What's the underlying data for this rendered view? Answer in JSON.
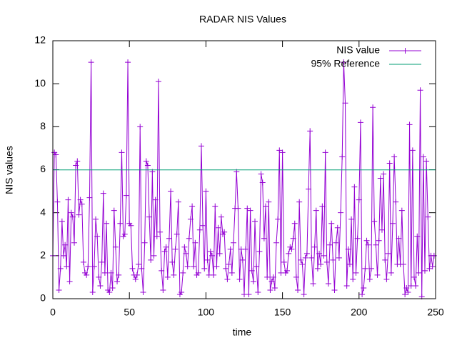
{
  "chart_data": {
    "type": "line",
    "title": "RADAR NIS Values",
    "xlabel": "time",
    "ylabel": "NIS values",
    "xlim": [
      0,
      250
    ],
    "xticks": [
      0,
      50,
      100,
      150,
      200,
      250
    ],
    "ylim": [
      0,
      12
    ],
    "yticks": [
      0,
      2,
      4,
      6,
      8,
      10,
      12
    ],
    "grid": false,
    "legend": "top-right",
    "series": [
      {
        "name": "NIS value",
        "color": "#9400d3",
        "marker": "+",
        "x": [
          0,
          1,
          2,
          3,
          4,
          5,
          6,
          7,
          8,
          9,
          10,
          11,
          12,
          13,
          14,
          15,
          16,
          17,
          18,
          19,
          20,
          21,
          22,
          23,
          24,
          25,
          26,
          27,
          28,
          29,
          30,
          31,
          32,
          33,
          34,
          35,
          36,
          37,
          38,
          39,
          40,
          41,
          42,
          43,
          44,
          45,
          46,
          47,
          48,
          49,
          50,
          51,
          52,
          53,
          54,
          55,
          56,
          57,
          58,
          59,
          60,
          61,
          62,
          63,
          64,
          65,
          66,
          67,
          68,
          69,
          70,
          71,
          72,
          73,
          74,
          75,
          76,
          77,
          78,
          79,
          80,
          81,
          82,
          83,
          84,
          85,
          86,
          87,
          88,
          89,
          90,
          91,
          92,
          93,
          94,
          95,
          96,
          97,
          98,
          99,
          100,
          101,
          102,
          103,
          104,
          105,
          106,
          107,
          108,
          109,
          110,
          111,
          112,
          113,
          114,
          115,
          116,
          117,
          118,
          119,
          120,
          121,
          122,
          123,
          124,
          125,
          126,
          127,
          128,
          129,
          130,
          131,
          132,
          133,
          134,
          135,
          136,
          137,
          138,
          139,
          140,
          141,
          142,
          143,
          144,
          145,
          146,
          147,
          148,
          149,
          150,
          151,
          152,
          153,
          154,
          155,
          156,
          157,
          158,
          159,
          160,
          161,
          162,
          163,
          164,
          165,
          166,
          167,
          168,
          169,
          170,
          171,
          172,
          173,
          174,
          175,
          176,
          177,
          178,
          179,
          180,
          181,
          182,
          183,
          184,
          185,
          186,
          187,
          188,
          189,
          190,
          191,
          192,
          193,
          194,
          195,
          196,
          197,
          198,
          199,
          200,
          201,
          202,
          203,
          204,
          205,
          206,
          207,
          208,
          209,
          210,
          211,
          212,
          213,
          214,
          215,
          216,
          217,
          218,
          219,
          220,
          221,
          222,
          223,
          224,
          225,
          226,
          227,
          228,
          229,
          230,
          231,
          232,
          233,
          234,
          235,
          236,
          237,
          238,
          239,
          240,
          241,
          242,
          243,
          244,
          245,
          246,
          247,
          248,
          249
        ],
        "values": [
          2.0,
          6.8,
          6.7,
          4.5,
          0.4,
          1.4,
          3.6,
          2.0,
          2.5,
          1.5,
          4.6,
          0.8,
          4.0,
          3.8,
          2.6,
          6.2,
          6.4,
          3.9,
          4.6,
          4.4,
          1.7,
          1.2,
          1.1,
          1.5,
          4.7,
          11.0,
          0.3,
          1.5,
          3.7,
          2.9,
          1.0,
          0.6,
          1.7,
          4.9,
          1.2,
          3.5,
          0.4,
          0.3,
          1.2,
          0.5,
          4.1,
          2.4,
          0.8,
          1.1,
          3.5,
          6.8,
          2.9,
          3.0,
          4.8,
          11.0,
          3.5,
          3.4,
          1.4,
          1.1,
          0.9,
          1.1,
          1.6,
          8.0,
          1.4,
          0.3,
          2.6,
          6.4,
          6.2,
          3.8,
          1.8,
          5.9,
          2.0,
          4.6,
          2.9,
          10.1,
          3.1,
          1.3,
          0.4,
          2.2,
          2.4,
          1.0,
          2.8,
          5.0,
          1.7,
          1.1,
          2.3,
          3.0,
          4.5,
          0.2,
          0.3,
          1.2,
          2.4,
          2.1,
          1.5,
          2.8,
          3.7,
          4.3,
          1.5,
          2.6,
          1.1,
          1.2,
          3.2,
          7.1,
          3.4,
          1.4,
          5.0,
          1.8,
          1.1,
          2.2,
          2.0,
          1.1,
          4.3,
          1.5,
          3.3,
          2.1,
          3.8,
          3.0,
          3.1,
          1.4,
          0.9,
          1.6,
          2.3,
          1.2,
          2.6,
          4.2,
          5.9,
          4.2,
          0.9,
          2.3,
          1.8,
          0.2,
          2.3,
          4.2,
          0.2,
          4.1,
          1.3,
          0.8,
          3.6,
          1.5,
          0.3,
          2.2,
          5.8,
          5.4,
          2.8,
          4.3,
          1.0,
          4.5,
          0.4,
          0.8,
          1.0,
          0.5,
          2.6,
          3.7,
          6.9,
          1.2,
          6.8,
          1.7,
          1.2,
          1.3,
          2.1,
          2.4,
          2.3,
          2.8,
          3.5,
          1.0,
          0.4,
          4.5,
          1.8,
          1.6,
          0.2,
          1.9,
          2.1,
          5.1,
          7.8,
          1.9,
          0.7,
          2.4,
          4.1,
          1.4,
          2.1,
          1.6,
          4.3,
          2.0,
          6.8,
          1.7,
          0.7,
          2.5,
          3.5,
          1.8,
          0.4,
          2.6,
          3.3,
          1.9,
          4.0,
          6.6,
          11.0,
          9.1,
          0.6,
          2.3,
          1.6,
          3.7,
          0.9,
          5.2,
          1.2,
          2.8,
          4.6,
          8.2,
          0.2,
          0.5,
          1.4,
          2.7,
          2.5,
          0.9,
          1.4,
          8.9,
          3.6,
          2.5,
          1.1,
          2.7,
          5.6,
          3.2,
          5.8,
          1.8,
          0.9,
          2.1,
          6.3,
          1.2,
          3.5,
          6.6,
          4.5,
          1.6,
          2.8,
          1.6,
          4.1,
          1.6,
          0.2,
          0.5,
          0.3,
          8.1,
          0.6,
          6.9,
          1.0,
          0.6,
          2.9,
          1.2,
          9.7,
          0.1,
          6.6,
          1.3,
          6.4,
          3.8,
          1.4,
          2.0,
          1.5,
          2.0
        ]
      },
      {
        "name": "95% Reference",
        "color": "#009e73",
        "x": [
          0,
          250
        ],
        "values": [
          5.991,
          5.991
        ]
      }
    ]
  }
}
